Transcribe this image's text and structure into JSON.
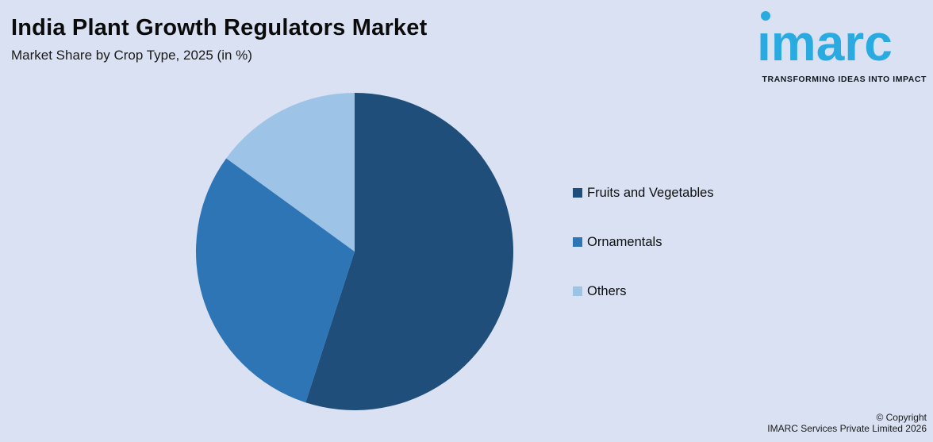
{
  "header": {
    "title": "India Plant Growth Regulators Market",
    "subtitle": "Market Share by Crop Type, 2025 (in %)"
  },
  "brand": {
    "wordmark": "imarc",
    "tagline": "TRANSFORMING IDEAS INTO IMPACT",
    "logo_color": "#29ABE2"
  },
  "chart_data": {
    "type": "pie",
    "title": "India Plant Growth Regulators Market",
    "subtitle": "Market Share by Crop Type, 2025 (in %)",
    "unit": "%",
    "year": "2025",
    "start_angle_deg": -90,
    "direction": "clockwise",
    "legend_position": "right",
    "data_labels_visible": false,
    "values_estimated_from_angles": true,
    "categories": [
      "Fruits and Vegetables",
      "Ornamentals",
      "Others"
    ],
    "values": [
      55,
      30,
      15
    ],
    "slices": [
      {
        "label": "Fruits and Vegetables",
        "value": 55,
        "color": "#1F4E7B"
      },
      {
        "label": "Ornamentals",
        "value": 30,
        "color": "#2E75B5"
      },
      {
        "label": "Others",
        "value": 15,
        "color": "#9DC3E6"
      }
    ]
  },
  "footer": {
    "copyright_line1": "© Copyright",
    "copyright_line2": "IMARC Services Private Limited 2026"
  },
  "colors": {
    "background": "#D9E1F2",
    "title_text": "#0B0B0B"
  }
}
